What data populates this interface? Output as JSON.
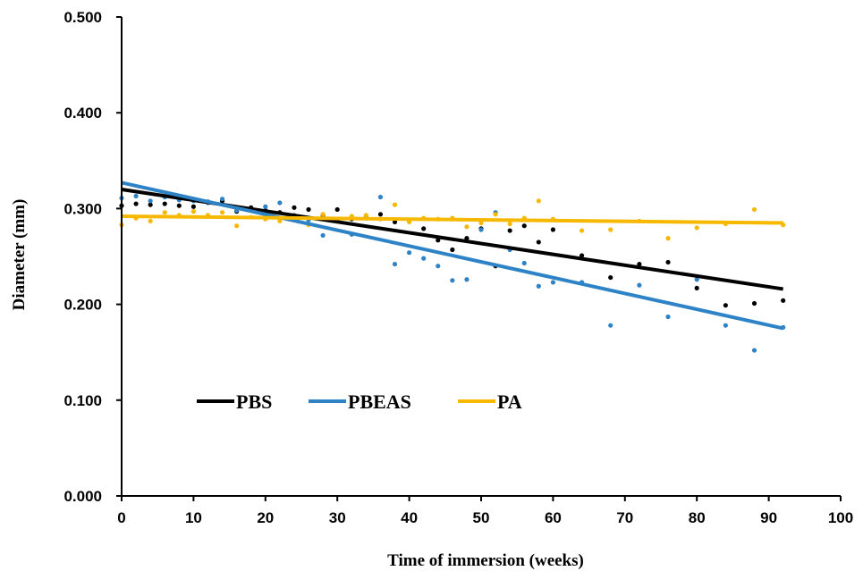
{
  "chart_data": {
    "type": "scatter",
    "xlabel": "Time of immersion (weeks)",
    "ylabel": "Diameter (mm)",
    "xlim": [
      0,
      100
    ],
    "ylim": [
      0,
      0.5
    ],
    "x_ticks": [
      "0",
      "10",
      "20",
      "30",
      "40",
      "50",
      "60",
      "70",
      "80",
      "90",
      "100"
    ],
    "y_ticks": [
      "0.000",
      "0.100",
      "0.200",
      "0.300",
      "0.400",
      "0.500"
    ],
    "grid": false,
    "legend_position": "bottom-left",
    "series": [
      {
        "name": "PBS",
        "color": "#000000",
        "points": [
          [
            0,
            0.303
          ],
          [
            2,
            0.305
          ],
          [
            4,
            0.304
          ],
          [
            6,
            0.305
          ],
          [
            8,
            0.303
          ],
          [
            10,
            0.302
          ],
          [
            12,
            0.307
          ],
          [
            14,
            0.308
          ],
          [
            16,
            0.297
          ],
          [
            18,
            0.301
          ],
          [
            20,
            0.298
          ],
          [
            22,
            0.296
          ],
          [
            24,
            0.301
          ],
          [
            26,
            0.299
          ],
          [
            28,
            0.293
          ],
          [
            30,
            0.299
          ],
          [
            32,
            0.289
          ],
          [
            34,
            0.291
          ],
          [
            36,
            0.294
          ],
          [
            38,
            0.286
          ],
          [
            40,
            0.288
          ],
          [
            42,
            0.279
          ],
          [
            44,
            0.267
          ],
          [
            46,
            0.257
          ],
          [
            48,
            0.269
          ],
          [
            50,
            0.279
          ],
          [
            52,
            0.24
          ],
          [
            54,
            0.277
          ],
          [
            56,
            0.282
          ],
          [
            58,
            0.265
          ],
          [
            60,
            0.278
          ],
          [
            64,
            0.251
          ],
          [
            68,
            0.228
          ],
          [
            72,
            0.242
          ],
          [
            76,
            0.244
          ],
          [
            80,
            0.217
          ],
          [
            84,
            0.199
          ],
          [
            88,
            0.201
          ],
          [
            92,
            0.204
          ]
        ],
        "trendline": [
          [
            0,
            0.32
          ],
          [
            92,
            0.216
          ]
        ]
      },
      {
        "name": "PBEAS",
        "color": "#2e82c6",
        "points": [
          [
            0,
            0.311
          ],
          [
            2,
            0.313
          ],
          [
            4,
            0.308
          ],
          [
            6,
            0.312
          ],
          [
            8,
            0.309
          ],
          [
            10,
            0.308
          ],
          [
            12,
            0.306
          ],
          [
            14,
            0.31
          ],
          [
            16,
            0.298
          ],
          [
            18,
            0.299
          ],
          [
            20,
            0.302
          ],
          [
            22,
            0.306
          ],
          [
            24,
            0.293
          ],
          [
            26,
            0.288
          ],
          [
            28,
            0.272
          ],
          [
            30,
            0.289
          ],
          [
            32,
            0.273
          ],
          [
            34,
            0.29
          ],
          [
            36,
            0.312
          ],
          [
            38,
            0.242
          ],
          [
            40,
            0.254
          ],
          [
            42,
            0.248
          ],
          [
            44,
            0.24
          ],
          [
            46,
            0.225
          ],
          [
            48,
            0.226
          ],
          [
            50,
            0.278
          ],
          [
            52,
            0.296
          ],
          [
            54,
            0.257
          ],
          [
            56,
            0.243
          ],
          [
            58,
            0.219
          ],
          [
            60,
            0.223
          ],
          [
            64,
            0.223
          ],
          [
            68,
            0.178
          ],
          [
            72,
            0.22
          ],
          [
            76,
            0.187
          ],
          [
            80,
            0.226
          ],
          [
            84,
            0.178
          ],
          [
            88,
            0.152
          ],
          [
            92,
            0.176
          ]
        ],
        "trendline": [
          [
            0,
            0.327
          ],
          [
            92,
            0.175
          ]
        ]
      },
      {
        "name": "PA",
        "color": "#f6b800",
        "points": [
          [
            0,
            0.283
          ],
          [
            2,
            0.29
          ],
          [
            4,
            0.287
          ],
          [
            6,
            0.296
          ],
          [
            8,
            0.293
          ],
          [
            10,
            0.297
          ],
          [
            12,
            0.293
          ],
          [
            14,
            0.296
          ],
          [
            16,
            0.282
          ],
          [
            18,
            0.291
          ],
          [
            20,
            0.289
          ],
          [
            22,
            0.287
          ],
          [
            24,
            0.292
          ],
          [
            26,
            0.283
          ],
          [
            28,
            0.294
          ],
          [
            30,
            0.287
          ],
          [
            32,
            0.292
          ],
          [
            34,
            0.293
          ],
          [
            36,
            0.289
          ],
          [
            38,
            0.304
          ],
          [
            40,
            0.286
          ],
          [
            42,
            0.29
          ],
          [
            44,
            0.289
          ],
          [
            46,
            0.29
          ],
          [
            48,
            0.281
          ],
          [
            50,
            0.285
          ],
          [
            52,
            0.294
          ],
          [
            54,
            0.284
          ],
          [
            56,
            0.29
          ],
          [
            58,
            0.308
          ],
          [
            60,
            0.289
          ],
          [
            64,
            0.277
          ],
          [
            68,
            0.278
          ],
          [
            72,
            0.287
          ],
          [
            76,
            0.269
          ],
          [
            80,
            0.28
          ],
          [
            84,
            0.284
          ],
          [
            88,
            0.299
          ],
          [
            92,
            0.283
          ]
        ],
        "trendline": [
          [
            0,
            0.292
          ],
          [
            92,
            0.285
          ]
        ]
      }
    ]
  }
}
